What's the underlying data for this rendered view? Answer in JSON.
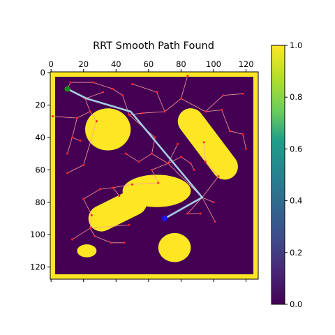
{
  "chart_data": {
    "type": "heatmap",
    "title": "RRT Smooth Path Found",
    "xlabel": "",
    "ylabel": "",
    "xlim": [
      -0.5,
      127.5
    ],
    "ylim": [
      127.5,
      -0.5
    ],
    "x_axis_position": "top",
    "xticks": [
      0,
      20,
      40,
      60,
      80,
      100,
      120
    ],
    "yticks": [
      0,
      20,
      40,
      60,
      80,
      100,
      120
    ],
    "grid": false,
    "colormap": "viridis",
    "color_range": [
      0.0,
      1.0
    ],
    "colorbar_ticks": [
      "0.0",
      "0.2",
      "0.4",
      "0.6",
      "0.8",
      "1.0"
    ],
    "colors": {
      "free": "#440154",
      "obstacle": "#fde725",
      "tree_edge": "#ff9a9a",
      "tree_node": "#ff2020",
      "path": "#a6cde3",
      "start": "#1a8a1a",
      "goal": "#1616ff"
    },
    "border_width_cells": 3,
    "obstacles": [
      {
        "shape": "ellipse",
        "cx": 35,
        "cy": 35,
        "rx": 14,
        "ry": 13
      },
      {
        "shape": "capsule",
        "x1": 86,
        "y1": 30,
        "x2": 107,
        "y2": 58,
        "r": 8
      },
      {
        "shape": "ellipse",
        "cx": 65,
        "cy": 73,
        "rx": 21,
        "ry": 10
      },
      {
        "shape": "capsule",
        "x1": 31,
        "y1": 90,
        "x2": 51,
        "y2": 80,
        "r": 8
      },
      {
        "shape": "ellipse",
        "cx": 76,
        "cy": 108,
        "rx": 10,
        "ry": 9
      },
      {
        "shape": "ellipse",
        "cx": 22,
        "cy": 110,
        "rx": 6,
        "ry": 4
      }
    ],
    "start": [
      10,
      10
    ],
    "goal": [
      70,
      90
    ],
    "path": [
      [
        10,
        10
      ],
      [
        22,
        16
      ],
      [
        49,
        24
      ],
      [
        93,
        77
      ],
      [
        70,
        90
      ]
    ],
    "tree_nodes": [
      [
        10,
        10
      ],
      [
        21,
        16
      ],
      [
        32,
        12
      ],
      [
        12,
        6
      ],
      [
        26,
        6
      ],
      [
        38,
        10
      ],
      [
        44,
        14
      ],
      [
        48,
        26
      ],
      [
        24,
        24
      ],
      [
        16,
        28
      ],
      [
        28,
        30
      ],
      [
        50,
        7
      ],
      [
        65,
        12
      ],
      [
        70,
        24
      ],
      [
        56,
        25
      ],
      [
        80,
        16
      ],
      [
        84,
        2
      ],
      [
        95,
        24
      ],
      [
        106,
        14
      ],
      [
        118,
        13
      ],
      [
        118,
        38
      ],
      [
        120,
        47
      ],
      [
        105,
        23
      ],
      [
        110,
        36
      ],
      [
        64,
        40
      ],
      [
        62,
        50
      ],
      [
        54,
        55
      ],
      [
        46,
        50
      ],
      [
        86,
        56
      ],
      [
        80,
        52
      ],
      [
        78,
        44
      ],
      [
        72,
        56
      ],
      [
        62,
        60
      ],
      [
        66,
        68
      ],
      [
        50,
        69
      ],
      [
        38,
        71
      ],
      [
        30,
        72
      ],
      [
        42,
        76
      ],
      [
        20,
        78
      ],
      [
        25,
        88
      ],
      [
        24,
        96
      ],
      [
        13,
        103
      ],
      [
        27,
        101
      ],
      [
        37,
        105
      ],
      [
        45,
        105
      ],
      [
        48,
        94
      ],
      [
        84,
        87
      ],
      [
        92,
        87
      ],
      [
        100,
        80
      ],
      [
        101,
        92
      ],
      [
        103,
        64
      ],
      [
        95,
        55
      ],
      [
        94,
        43
      ],
      [
        88,
        60
      ],
      [
        1,
        27
      ],
      [
        13,
        40
      ],
      [
        10,
        50
      ],
      [
        10,
        62
      ],
      [
        20,
        57
      ],
      [
        18,
        42
      ],
      [
        70,
        90
      ],
      [
        93,
        77
      ]
    ],
    "tree_edges": [
      [
        [
          10,
          10
        ],
        [
          21,
          16
        ]
      ],
      [
        [
          21,
          16
        ],
        [
          32,
          12
        ]
      ],
      [
        [
          10,
          10
        ],
        [
          12,
          6
        ]
      ],
      [
        [
          12,
          6
        ],
        [
          26,
          6
        ]
      ],
      [
        [
          26,
          6
        ],
        [
          38,
          10
        ]
      ],
      [
        [
          38,
          10
        ],
        [
          44,
          14
        ]
      ],
      [
        [
          44,
          14
        ],
        [
          48,
          26
        ]
      ],
      [
        [
          21,
          16
        ],
        [
          24,
          24
        ]
      ],
      [
        [
          24,
          24
        ],
        [
          16,
          28
        ]
      ],
      [
        [
          24,
          24
        ],
        [
          28,
          30
        ]
      ],
      [
        [
          48,
          26
        ],
        [
          56,
          25
        ]
      ],
      [
        [
          56,
          25
        ],
        [
          70,
          24
        ]
      ],
      [
        [
          70,
          24
        ],
        [
          65,
          12
        ]
      ],
      [
        [
          65,
          12
        ],
        [
          50,
          7
        ]
      ],
      [
        [
          70,
          24
        ],
        [
          80,
          16
        ]
      ],
      [
        [
          80,
          16
        ],
        [
          84,
          2
        ]
      ],
      [
        [
          80,
          16
        ],
        [
          95,
          24
        ]
      ],
      [
        [
          95,
          24
        ],
        [
          106,
          14
        ]
      ],
      [
        [
          106,
          14
        ],
        [
          118,
          13
        ]
      ],
      [
        [
          95,
          24
        ],
        [
          105,
          23
        ]
      ],
      [
        [
          105,
          23
        ],
        [
          110,
          36
        ]
      ],
      [
        [
          110,
          36
        ],
        [
          118,
          38
        ]
      ],
      [
        [
          118,
          38
        ],
        [
          120,
          47
        ]
      ],
      [
        [
          48,
          26
        ],
        [
          64,
          40
        ]
      ],
      [
        [
          64,
          40
        ],
        [
          62,
          50
        ]
      ],
      [
        [
          62,
          50
        ],
        [
          54,
          55
        ]
      ],
      [
        [
          54,
          55
        ],
        [
          46,
          50
        ]
      ],
      [
        [
          62,
          50
        ],
        [
          72,
          56
        ]
      ],
      [
        [
          72,
          56
        ],
        [
          80,
          52
        ]
      ],
      [
        [
          80,
          52
        ],
        [
          86,
          56
        ]
      ],
      [
        [
          72,
          56
        ],
        [
          78,
          44
        ]
      ],
      [
        [
          72,
          56
        ],
        [
          62,
          60
        ]
      ],
      [
        [
          62,
          60
        ],
        [
          66,
          68
        ]
      ],
      [
        [
          66,
          68
        ],
        [
          50,
          69
        ]
      ],
      [
        [
          50,
          69
        ],
        [
          38,
          71
        ]
      ],
      [
        [
          38,
          71
        ],
        [
          30,
          72
        ]
      ],
      [
        [
          38,
          71
        ],
        [
          42,
          76
        ]
      ],
      [
        [
          30,
          72
        ],
        [
          20,
          78
        ]
      ],
      [
        [
          20,
          78
        ],
        [
          25,
          88
        ]
      ],
      [
        [
          25,
          88
        ],
        [
          24,
          96
        ]
      ],
      [
        [
          24,
          96
        ],
        [
          13,
          103
        ]
      ],
      [
        [
          24,
          96
        ],
        [
          27,
          101
        ]
      ],
      [
        [
          27,
          101
        ],
        [
          37,
          105
        ]
      ],
      [
        [
          37,
          105
        ],
        [
          45,
          105
        ]
      ],
      [
        [
          24,
          96
        ],
        [
          48,
          94
        ]
      ],
      [
        [
          93,
          77
        ],
        [
          84,
          87
        ]
      ],
      [
        [
          84,
          87
        ],
        [
          92,
          87
        ]
      ],
      [
        [
          93,
          77
        ],
        [
          100,
          80
        ]
      ],
      [
        [
          93,
          77
        ],
        [
          101,
          92
        ]
      ],
      [
        [
          93,
          77
        ],
        [
          103,
          64
        ]
      ],
      [
        [
          103,
          64
        ],
        [
          95,
          55
        ]
      ],
      [
        [
          95,
          55
        ],
        [
          94,
          43
        ]
      ],
      [
        [
          86,
          56
        ],
        [
          88,
          60
        ]
      ],
      [
        [
          16,
          28
        ],
        [
          1,
          27
        ]
      ],
      [
        [
          16,
          28
        ],
        [
          13,
          40
        ]
      ],
      [
        [
          13,
          40
        ],
        [
          10,
          50
        ]
      ],
      [
        [
          13,
          40
        ],
        [
          18,
          42
        ]
      ],
      [
        [
          20,
          57
        ],
        [
          10,
          62
        ]
      ],
      [
        [
          28,
          30
        ],
        [
          20,
          57
        ]
      ],
      [
        [
          72,
          56
        ],
        [
          93,
          77
        ]
      ],
      [
        [
          93,
          77
        ],
        [
          70,
          90
        ]
      ]
    ]
  }
}
